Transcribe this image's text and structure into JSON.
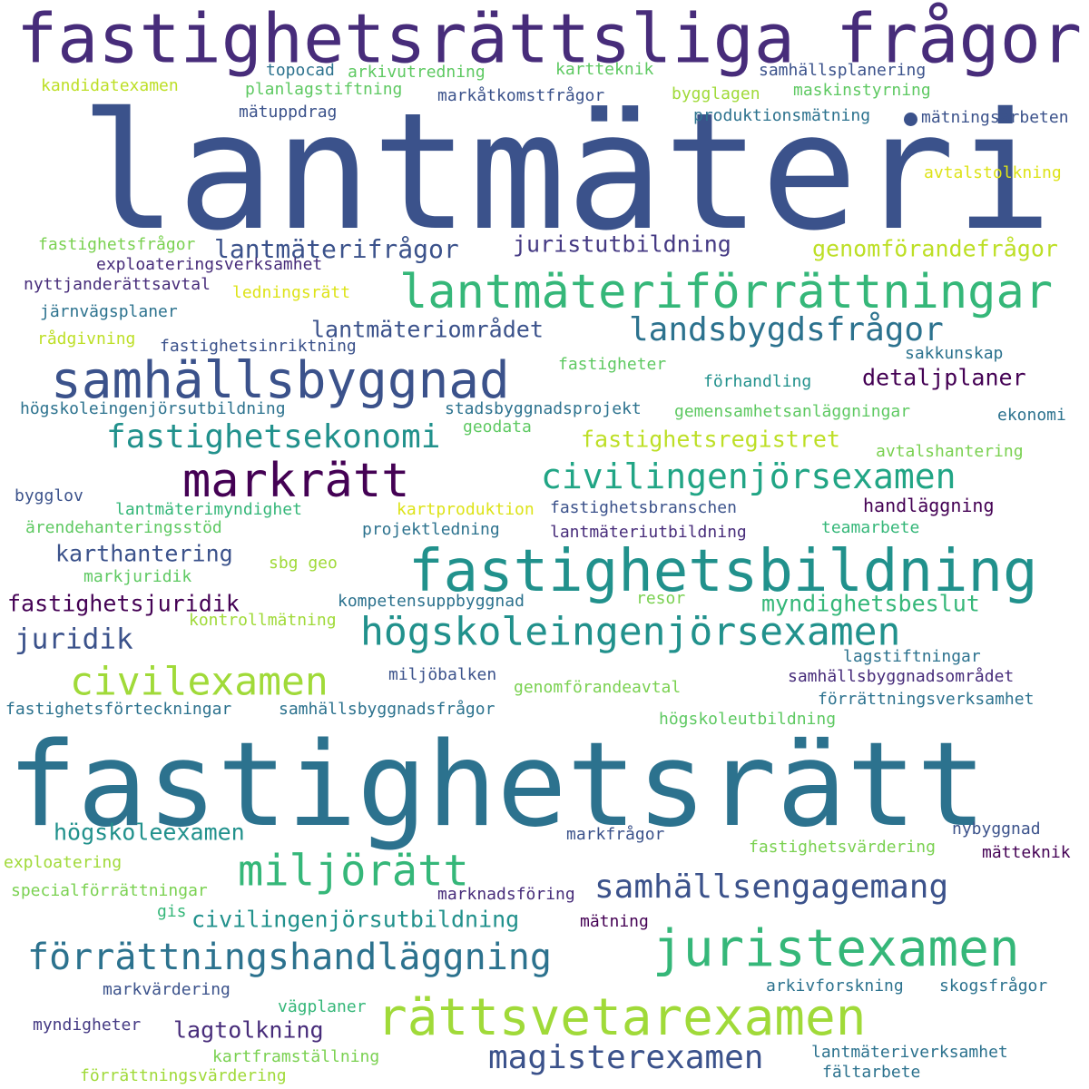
{
  "words": [
    {
      "text": "fastighetsrättsliga frågor",
      "color": "#472c7a"
    },
    {
      "text": "lantmäteri",
      "color": "#3b528b"
    },
    {
      "text": "topocad",
      "color": "#2c728e"
    },
    {
      "text": "arkivutredning",
      "color": "#5ec962"
    },
    {
      "text": "kartteknik",
      "color": "#5ec962"
    },
    {
      "text": "samhällsplanering",
      "color": "#3b528b"
    },
    {
      "text": "kandidatexamen",
      "color": "#bddf26"
    },
    {
      "text": "planlagstiftning",
      "color": "#5ec962"
    },
    {
      "text": "markåtkomstfrågor",
      "color": "#3b528b"
    },
    {
      "text": "bygglagen",
      "color": "#a0da39"
    },
    {
      "text": "maskinstyrning",
      "color": "#5ec962"
    },
    {
      "text": "mätuppdrag",
      "color": "#3b528b"
    },
    {
      "text": "produktionsmätning",
      "color": "#2c728e"
    },
    {
      "text": "mätningsarbeten",
      "color": "#3b528b"
    },
    {
      "text": "avtalstolkning",
      "color": "#dde318"
    },
    {
      "text": "fastighetsfrågor",
      "color": "#7ad151"
    },
    {
      "text": "lantmäterifrågor",
      "color": "#3b528b"
    },
    {
      "text": "juristutbildning",
      "color": "#443983"
    },
    {
      "text": "genomförandefrågor",
      "color": "#bddf26"
    },
    {
      "text": "exploateringsverksamhet",
      "color": "#472c7a"
    },
    {
      "text": "lantmäteriförrättningar",
      "color": "#35b779"
    },
    {
      "text": "nyttjanderättsavtal",
      "color": "#472c7a"
    },
    {
      "text": "ledningsrätt",
      "color": "#dde318"
    },
    {
      "text": "järnvägsplaner",
      "color": "#2c728e"
    },
    {
      "text": "lantmäteriområdet",
      "color": "#3b528b"
    },
    {
      "text": "landsbygdsfrågor",
      "color": "#2c728e"
    },
    {
      "text": "rådgivning",
      "color": "#bddf26"
    },
    {
      "text": "fastighetsinriktning",
      "color": "#3b528b"
    },
    {
      "text": "sakkunskap",
      "color": "#2c728e"
    },
    {
      "text": "samhällsbyggnad",
      "color": "#3b528b"
    },
    {
      "text": "fastigheter",
      "color": "#5ec962"
    },
    {
      "text": "förhandling",
      "color": "#21918c"
    },
    {
      "text": "detaljplaner",
      "color": "#440154"
    },
    {
      "text": "högskoleingenjörsutbildning",
      "color": "#2c728e"
    },
    {
      "text": "stadsbyggnadsprojekt",
      "color": "#2c728e"
    },
    {
      "text": "gemensamhetsanläggningar",
      "color": "#5ec962"
    },
    {
      "text": "ekonomi",
      "color": "#2c728e"
    },
    {
      "text": "geodata",
      "color": "#5ec962"
    },
    {
      "text": "fastighetsekonomi",
      "color": "#21918c"
    },
    {
      "text": "fastighetsregistret",
      "color": "#bddf26"
    },
    {
      "text": "avtalshantering",
      "color": "#7ad151"
    },
    {
      "text": "markrätt",
      "color": "#440154"
    },
    {
      "text": "civilingenjörsexamen",
      "color": "#21a585"
    },
    {
      "text": "bygglov",
      "color": "#3b528b"
    },
    {
      "text": "lantmäterimyndighet",
      "color": "#35b779"
    },
    {
      "text": "kartproduktion",
      "color": "#dde318"
    },
    {
      "text": "fastighetsbranschen",
      "color": "#3b528b"
    },
    {
      "text": "handläggning",
      "color": "#440154"
    },
    {
      "text": "ärendehanteringsstöd",
      "color": "#5ec962"
    },
    {
      "text": "projektledning",
      "color": "#2c728e"
    },
    {
      "text": "lantmäteriutbildning",
      "color": "#472c7a"
    },
    {
      "text": "teamarbete",
      "color": "#35b779"
    },
    {
      "text": "karthantering",
      "color": "#3b528b"
    },
    {
      "text": "fastighetsbildning",
      "color": "#21918c"
    },
    {
      "text": "markjuridik",
      "color": "#5ec962"
    },
    {
      "text": "sbg geo",
      "color": "#a0da39"
    },
    {
      "text": "fastighetsjuridik",
      "color": "#440154"
    },
    {
      "text": "kompetensuppbyggnad",
      "color": "#2c728e"
    },
    {
      "text": "resor",
      "color": "#7ad151"
    },
    {
      "text": "myndighetsbeslut",
      "color": "#35b779"
    },
    {
      "text": "kontrollmätning",
      "color": "#a0da39"
    },
    {
      "text": "juridik",
      "color": "#3b528b"
    },
    {
      "text": "högskoleingenjörsexamen",
      "color": "#21918c"
    },
    {
      "text": "lagstiftningar",
      "color": "#2c728e"
    },
    {
      "text": "civilexamen",
      "color": "#a0da39"
    },
    {
      "text": "miljöbalken",
      "color": "#3b528b"
    },
    {
      "text": "genomförandeavtal",
      "color": "#7ad151"
    },
    {
      "text": "samhällsbyggnadsområdet",
      "color": "#472c7a"
    },
    {
      "text": "förrättningsverksamhet",
      "color": "#2c728e"
    },
    {
      "text": "fastighetsförteckningar",
      "color": "#2c728e"
    },
    {
      "text": "samhällsbyggnadsfrågor",
      "color": "#2c728e"
    },
    {
      "text": "högskoleutbildning",
      "color": "#5ec962"
    },
    {
      "text": "fastighetsrätt",
      "color": "#2c728e"
    },
    {
      "text": "högskoleexamen",
      "color": "#21918c"
    },
    {
      "text": "markfrågor",
      "color": "#3b528b"
    },
    {
      "text": "nybyggnad",
      "color": "#3b528b"
    },
    {
      "text": "exploatering",
      "color": "#a0da39"
    },
    {
      "text": "fastighetsvärdering",
      "color": "#7ad151"
    },
    {
      "text": "mätteknik",
      "color": "#440154"
    },
    {
      "text": "miljörätt",
      "color": "#35b779"
    },
    {
      "text": "samhällsengagemang",
      "color": "#3b528b"
    },
    {
      "text": "specialförrättningar",
      "color": "#7ad151"
    },
    {
      "text": "marknadsföring",
      "color": "#472c7a"
    },
    {
      "text": "gis",
      "color": "#35b779"
    },
    {
      "text": "civilingenjörsutbildning",
      "color": "#21918c"
    },
    {
      "text": "mätning",
      "color": "#440154"
    },
    {
      "text": "förrättningshandläggning",
      "color": "#2c728e"
    },
    {
      "text": "juristexamen",
      "color": "#35b779"
    },
    {
      "text": "markvärdering",
      "color": "#3b528b"
    },
    {
      "text": "arkivforskning",
      "color": "#2c728e"
    },
    {
      "text": "skogsfrågor",
      "color": "#2c728e"
    },
    {
      "text": "vägplaner",
      "color": "#35b779"
    },
    {
      "text": "rättsvetarexamen",
      "color": "#a0da39"
    },
    {
      "text": "myndigheter",
      "color": "#443983"
    },
    {
      "text": "lagtolkning",
      "color": "#472c7a"
    },
    {
      "text": "magisterexamen",
      "color": "#3b528b"
    },
    {
      "text": "kartframställning",
      "color": "#7ad151"
    },
    {
      "text": "lantmäteriverksamhet",
      "color": "#2c728e"
    },
    {
      "text": "förrättningsvärdering",
      "color": "#a0da39"
    },
    {
      "text": "fältarbete",
      "color": "#2c728e"
    }
  ]
}
